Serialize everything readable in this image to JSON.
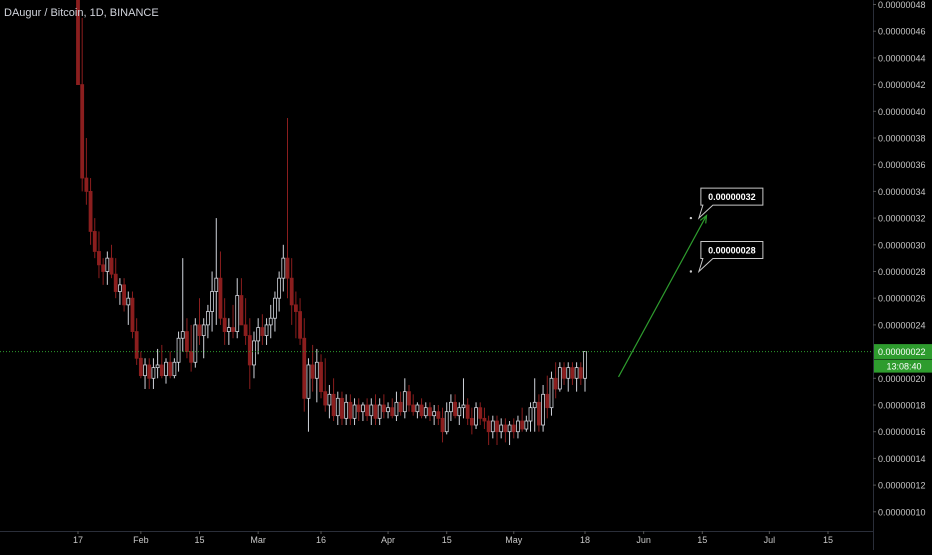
{
  "header": {
    "title": "DAugur / Bitcoin, 1D, BINANCE"
  },
  "chart_data": {
    "type": "candlestick",
    "title": "DAugur / Bitcoin, 1D, BINANCE",
    "ylim": [
      9.1e-08,
      4.9e-08
    ],
    "y_ticks": [
      "0.00000048",
      "0.00000046",
      "0.00000044",
      "0.00000042",
      "0.00000040",
      "0.00000038",
      "0.00000036",
      "0.00000034",
      "0.00000032",
      "0.00000030",
      "0.00000028",
      "0.00000026",
      "0.00000024",
      "0.00000022",
      "0.00000020",
      "0.00000018",
      "0.00000016",
      "0.00000014",
      "0.00000012",
      "0.00000010"
    ],
    "x_ticks": [
      {
        "label": "17",
        "day": 0
      },
      {
        "label": "Feb",
        "day": 15
      },
      {
        "label": "15",
        "day": 29
      },
      {
        "label": "Mar",
        "day": 43
      },
      {
        "label": "16",
        "day": 58
      },
      {
        "label": "Apr",
        "day": 74
      },
      {
        "label": "15",
        "day": 88
      },
      {
        "label": "May",
        "day": 104
      },
      {
        "label": "18",
        "day": 121
      },
      {
        "label": "Jun",
        "day": 135
      },
      {
        "label": "15",
        "day": 149
      },
      {
        "label": "Jul",
        "day": 165
      },
      {
        "label": "15",
        "day": 179
      }
    ],
    "last_price": "0.00000022",
    "countdown": "13:08:40",
    "annotations": [
      {
        "text": "0.00000032",
        "value": 3.2e-07,
        "day": 152
      },
      {
        "text": "0.00000028",
        "value": 2.8e-07,
        "day": 152
      }
    ],
    "projection": {
      "from_day": 129,
      "from_value": 2.01e-07,
      "to_day": 150,
      "to_value": 3.22e-07,
      "color": "#2e9c2e"
    },
    "candles": [
      {
        "d": 0,
        "o": 4.9e-07,
        "h": 4.9e-07,
        "l": 4.2e-07,
        "c": 4.2e-07
      },
      {
        "d": 1,
        "o": 4.2e-07,
        "h": 4.7e-07,
        "l": 3.4e-07,
        "c": 3.5e-07
      },
      {
        "d": 2,
        "o": 3.5e-07,
        "h": 3.8e-07,
        "l": 3.3e-07,
        "c": 3.4e-07
      },
      {
        "d": 3,
        "o": 3.4e-07,
        "h": 3.5e-07,
        "l": 3e-07,
        "c": 3.1e-07
      },
      {
        "d": 4,
        "o": 3.1e-07,
        "h": 3.2e-07,
        "l": 2.9e-07,
        "c": 2.95e-07
      },
      {
        "d": 5,
        "o": 2.95e-07,
        "h": 3.1e-07,
        "l": 2.75e-07,
        "c": 2.85e-07
      },
      {
        "d": 6,
        "o": 2.85e-07,
        "h": 2.9e-07,
        "l": 2.7e-07,
        "c": 2.8e-07
      },
      {
        "d": 7,
        "o": 2.8e-07,
        "h": 2.95e-07,
        "l": 2.7e-07,
        "c": 2.9e-07
      },
      {
        "d": 8,
        "o": 2.9e-07,
        "h": 3e-07,
        "l": 2.75e-07,
        "c": 2.78e-07
      },
      {
        "d": 9,
        "o": 2.78e-07,
        "h": 2.9e-07,
        "l": 2.6e-07,
        "c": 2.65e-07
      },
      {
        "d": 10,
        "o": 2.65e-07,
        "h": 2.75e-07,
        "l": 2.55e-07,
        "c": 2.7e-07
      },
      {
        "d": 11,
        "o": 2.7e-07,
        "h": 2.75e-07,
        "l": 2.5e-07,
        "c": 2.55e-07
      },
      {
        "d": 12,
        "o": 2.55e-07,
        "h": 2.65e-07,
        "l": 2.4e-07,
        "c": 2.6e-07
      },
      {
        "d": 13,
        "o": 2.6e-07,
        "h": 2.65e-07,
        "l": 2.3e-07,
        "c": 2.35e-07
      },
      {
        "d": 14,
        "o": 2.35e-07,
        "h": 2.45e-07,
        "l": 2.1e-07,
        "c": 2.15e-07
      },
      {
        "d": 15,
        "o": 2.15e-07,
        "h": 2.2e-07,
        "l": 2e-07,
        "c": 2.02e-07
      },
      {
        "d": 16,
        "o": 2.02e-07,
        "h": 2.15e-07,
        "l": 1.92e-07,
        "c": 2.1e-07
      },
      {
        "d": 17,
        "o": 2.1e-07,
        "h": 2.15e-07,
        "l": 1.92e-07,
        "c": 2e-07
      },
      {
        "d": 18,
        "o": 2e-07,
        "h": 2.15e-07,
        "l": 1.92e-07,
        "c": 2.08e-07
      },
      {
        "d": 19,
        "o": 2.08e-07,
        "h": 2.22e-07,
        "l": 2e-07,
        "c": 2.1e-07
      },
      {
        "d": 20,
        "o": 2.1e-07,
        "h": 2.25e-07,
        "l": 2e-07,
        "c": 2.02e-07
      },
      {
        "d": 21,
        "o": 2.02e-07,
        "h": 2.15e-07,
        "l": 1.96e-07,
        "c": 2.12e-07
      },
      {
        "d": 22,
        "o": 2.12e-07,
        "h": 2.2e-07,
        "l": 2e-07,
        "c": 2.02e-07
      },
      {
        "d": 23,
        "o": 2.02e-07,
        "h": 2.15e-07,
        "l": 2e-07,
        "c": 2.12e-07
      },
      {
        "d": 24,
        "o": 2.12e-07,
        "h": 2.35e-07,
        "l": 2.05e-07,
        "c": 2.3e-07
      },
      {
        "d": 25,
        "o": 2.3e-07,
        "h": 2.9e-07,
        "l": 2.2e-07,
        "c": 2.35e-07
      },
      {
        "d": 26,
        "o": 2.35e-07,
        "h": 2.45e-07,
        "l": 2.15e-07,
        "c": 2.2e-07
      },
      {
        "d": 27,
        "o": 2.2e-07,
        "h": 2.4e-07,
        "l": 2.05e-07,
        "c": 2.12e-07
      },
      {
        "d": 28,
        "o": 2.12e-07,
        "h": 2.45e-07,
        "l": 2.08e-07,
        "c": 2.4e-07
      },
      {
        "d": 29,
        "o": 2.4e-07,
        "h": 2.6e-07,
        "l": 2.25e-07,
        "c": 2.32e-07
      },
      {
        "d": 30,
        "o": 2.32e-07,
        "h": 2.45e-07,
        "l": 2.15e-07,
        "c": 2.4e-07
      },
      {
        "d": 31,
        "o": 2.4e-07,
        "h": 2.55e-07,
        "l": 2.3e-07,
        "c": 2.5e-07
      },
      {
        "d": 32,
        "o": 2.5e-07,
        "h": 2.8e-07,
        "l": 2.35e-07,
        "c": 2.65e-07
      },
      {
        "d": 33,
        "o": 2.65e-07,
        "h": 3.2e-07,
        "l": 2.4e-07,
        "c": 2.75e-07
      },
      {
        "d": 34,
        "o": 2.75e-07,
        "h": 2.95e-07,
        "l": 2.4e-07,
        "c": 2.45e-07
      },
      {
        "d": 35,
        "o": 2.45e-07,
        "h": 2.6e-07,
        "l": 2.25e-07,
        "c": 2.35e-07
      },
      {
        "d": 36,
        "o": 2.35e-07,
        "h": 2.45e-07,
        "l": 2.25e-07,
        "c": 2.38e-07
      },
      {
        "d": 37,
        "o": 2.38e-07,
        "h": 2.55e-07,
        "l": 2.3e-07,
        "c": 2.35e-07
      },
      {
        "d": 38,
        "o": 2.35e-07,
        "h": 2.75e-07,
        "l": 2.3e-07,
        "c": 2.62e-07
      },
      {
        "d": 39,
        "o": 2.62e-07,
        "h": 2.75e-07,
        "l": 2.4e-07,
        "c": 2.4e-07
      },
      {
        "d": 40,
        "o": 2.4e-07,
        "h": 2.6e-07,
        "l": 2.25e-07,
        "c": 2.32e-07
      },
      {
        "d": 41,
        "o": 2.32e-07,
        "h": 2.45e-07,
        "l": 1.92e-07,
        "c": 2.1e-07
      },
      {
        "d": 42,
        "o": 2.1e-07,
        "h": 2.35e-07,
        "l": 2e-07,
        "c": 2.28e-07
      },
      {
        "d": 43,
        "o": 2.28e-07,
        "h": 2.45e-07,
        "l": 2.18e-07,
        "c": 2.38e-07
      },
      {
        "d": 44,
        "o": 2.38e-07,
        "h": 2.48e-07,
        "l": 2.25e-07,
        "c": 2.32e-07
      },
      {
        "d": 45,
        "o": 2.32e-07,
        "h": 2.45e-07,
        "l": 2.25e-07,
        "c": 2.4e-07
      },
      {
        "d": 46,
        "o": 2.4e-07,
        "h": 2.55e-07,
        "l": 2.3e-07,
        "c": 2.45e-07
      },
      {
        "d": 47,
        "o": 2.45e-07,
        "h": 2.65e-07,
        "l": 2.35e-07,
        "c": 2.6e-07
      },
      {
        "d": 48,
        "o": 2.6e-07,
        "h": 2.8e-07,
        "l": 2.5e-07,
        "c": 2.75e-07
      },
      {
        "d": 49,
        "o": 2.75e-07,
        "h": 3e-07,
        "l": 2.65e-07,
        "c": 2.9e-07
      },
      {
        "d": 50,
        "o": 2.9e-07,
        "h": 3.95e-07,
        "l": 2.6e-07,
        "c": 2.75e-07
      },
      {
        "d": 51,
        "o": 2.75e-07,
        "h": 2.9e-07,
        "l": 2.4e-07,
        "c": 2.55e-07
      },
      {
        "d": 52,
        "o": 2.55e-07,
        "h": 2.65e-07,
        "l": 2.3e-07,
        "c": 2.5e-07
      },
      {
        "d": 53,
        "o": 2.5e-07,
        "h": 2.6e-07,
        "l": 2.25e-07,
        "c": 2.3e-07
      },
      {
        "d": 54,
        "o": 2.3e-07,
        "h": 2.45e-07,
        "l": 1.75e-07,
        "c": 1.85e-07
      },
      {
        "d": 55,
        "o": 1.85e-07,
        "h": 2.15e-07,
        "l": 1.6e-07,
        "c": 2.1e-07
      },
      {
        "d": 56,
        "o": 2.1e-07,
        "h": 2.25e-07,
        "l": 1.9e-07,
        "c": 2e-07
      },
      {
        "d": 57,
        "o": 2e-07,
        "h": 2.22e-07,
        "l": 1.82e-07,
        "c": 2.12e-07
      },
      {
        "d": 58,
        "o": 2.12e-07,
        "h": 2.18e-07,
        "l": 1.85e-07,
        "c": 1.9e-07
      },
      {
        "d": 59,
        "o": 1.9e-07,
        "h": 2.15e-07,
        "l": 1.75e-07,
        "c": 1.8e-07
      },
      {
        "d": 60,
        "o": 1.8e-07,
        "h": 1.95e-07,
        "l": 1.7e-07,
        "c": 1.88e-07
      },
      {
        "d": 61,
        "o": 1.88e-07,
        "h": 2e-07,
        "l": 1.68e-07,
        "c": 1.72e-07
      },
      {
        "d": 62,
        "o": 1.72e-07,
        "h": 1.9e-07,
        "l": 1.65e-07,
        "c": 1.85e-07
      },
      {
        "d": 63,
        "o": 1.85e-07,
        "h": 1.9e-07,
        "l": 1.65e-07,
        "c": 1.7e-07
      },
      {
        "d": 64,
        "o": 1.7e-07,
        "h": 1.88e-07,
        "l": 1.65e-07,
        "c": 1.82e-07
      },
      {
        "d": 65,
        "o": 1.82e-07,
        "h": 1.88e-07,
        "l": 1.65e-07,
        "c": 1.7e-07
      },
      {
        "d": 66,
        "o": 1.7e-07,
        "h": 1.85e-07,
        "l": 1.65e-07,
        "c": 1.8e-07
      },
      {
        "d": 67,
        "o": 1.8e-07,
        "h": 1.85e-07,
        "l": 1.68e-07,
        "c": 1.75e-07
      },
      {
        "d": 68,
        "o": 1.75e-07,
        "h": 1.82e-07,
        "l": 1.68e-07,
        "c": 1.8e-07
      },
      {
        "d": 69,
        "o": 1.8e-07,
        "h": 1.85e-07,
        "l": 1.68e-07,
        "c": 1.72e-07
      },
      {
        "d": 70,
        "o": 1.72e-07,
        "h": 1.85e-07,
        "l": 1.65e-07,
        "c": 1.8e-07
      },
      {
        "d": 71,
        "o": 1.8e-07,
        "h": 1.88e-07,
        "l": 1.65e-07,
        "c": 1.7e-07
      },
      {
        "d": 72,
        "o": 1.7e-07,
        "h": 1.85e-07,
        "l": 1.65e-07,
        "c": 1.8e-07
      },
      {
        "d": 73,
        "o": 1.8e-07,
        "h": 1.88e-07,
        "l": 1.7e-07,
        "c": 1.75e-07
      },
      {
        "d": 74,
        "o": 1.75e-07,
        "h": 1.82e-07,
        "l": 1.7e-07,
        "c": 1.78e-07
      },
      {
        "d": 75,
        "o": 1.78e-07,
        "h": 1.85e-07,
        "l": 1.7e-07,
        "c": 1.72e-07
      },
      {
        "d": 76,
        "o": 1.72e-07,
        "h": 1.9e-07,
        "l": 1.68e-07,
        "c": 1.82e-07
      },
      {
        "d": 77,
        "o": 1.82e-07,
        "h": 1.9e-07,
        "l": 1.72e-07,
        "c": 1.75e-07
      },
      {
        "d": 78,
        "o": 1.75e-07,
        "h": 2e-07,
        "l": 1.7e-07,
        "c": 1.9e-07
      },
      {
        "d": 79,
        "o": 1.9e-07,
        "h": 1.95e-07,
        "l": 1.75e-07,
        "c": 1.8e-07
      },
      {
        "d": 80,
        "o": 1.8e-07,
        "h": 1.88e-07,
        "l": 1.72e-07,
        "c": 1.75e-07
      },
      {
        "d": 81,
        "o": 1.75e-07,
        "h": 1.82e-07,
        "l": 1.7e-07,
        "c": 1.8e-07
      },
      {
        "d": 82,
        "o": 1.8e-07,
        "h": 1.85e-07,
        "l": 1.7e-07,
        "c": 1.72e-07
      },
      {
        "d": 83,
        "o": 1.72e-07,
        "h": 1.82e-07,
        "l": 1.7e-07,
        "c": 1.78e-07
      },
      {
        "d": 84,
        "o": 1.78e-07,
        "h": 1.82e-07,
        "l": 1.68e-07,
        "c": 1.72e-07
      },
      {
        "d": 85,
        "o": 1.72e-07,
        "h": 1.8e-07,
        "l": 1.65e-07,
        "c": 1.75e-07
      },
      {
        "d": 86,
        "o": 1.75e-07,
        "h": 1.8e-07,
        "l": 1.65e-07,
        "c": 1.7e-07
      },
      {
        "d": 87,
        "o": 1.7e-07,
        "h": 1.78e-07,
        "l": 1.52e-07,
        "c": 1.6e-07
      },
      {
        "d": 88,
        "o": 1.6e-07,
        "h": 1.82e-07,
        "l": 1.58e-07,
        "c": 1.75e-07
      },
      {
        "d": 89,
        "o": 1.75e-07,
        "h": 1.88e-07,
        "l": 1.68e-07,
        "c": 1.82e-07
      },
      {
        "d": 90,
        "o": 1.82e-07,
        "h": 1.88e-07,
        "l": 1.7e-07,
        "c": 1.72e-07
      },
      {
        "d": 91,
        "o": 1.72e-07,
        "h": 1.82e-07,
        "l": 1.65e-07,
        "c": 1.78e-07
      },
      {
        "d": 92,
        "o": 1.78e-07,
        "h": 2e-07,
        "l": 1.7e-07,
        "c": 1.8e-07
      },
      {
        "d": 93,
        "o": 1.8e-07,
        "h": 1.85e-07,
        "l": 1.65e-07,
        "c": 1.7e-07
      },
      {
        "d": 94,
        "o": 1.7e-07,
        "h": 1.78e-07,
        "l": 1.58e-07,
        "c": 1.65e-07
      },
      {
        "d": 95,
        "o": 1.65e-07,
        "h": 1.82e-07,
        "l": 1.62e-07,
        "c": 1.78e-07
      },
      {
        "d": 96,
        "o": 1.78e-07,
        "h": 1.82e-07,
        "l": 1.65e-07,
        "c": 1.7e-07
      },
      {
        "d": 97,
        "o": 1.7e-07,
        "h": 1.78e-07,
        "l": 1.62e-07,
        "c": 1.68e-07
      },
      {
        "d": 98,
        "o": 1.68e-07,
        "h": 1.72e-07,
        "l": 1.5e-07,
        "c": 1.6e-07
      },
      {
        "d": 99,
        "o": 1.6e-07,
        "h": 1.72e-07,
        "l": 1.55e-07,
        "c": 1.68e-07
      },
      {
        "d": 100,
        "o": 1.68e-07,
        "h": 1.72e-07,
        "l": 1.5e-07,
        "c": 1.6e-07
      },
      {
        "d": 101,
        "o": 1.6e-07,
        "h": 1.7e-07,
        "l": 1.55e-07,
        "c": 1.65e-07
      },
      {
        "d": 102,
        "o": 1.65e-07,
        "h": 1.7e-07,
        "l": 1.52e-07,
        "c": 1.6e-07
      },
      {
        "d": 103,
        "o": 1.6e-07,
        "h": 1.68e-07,
        "l": 1.5e-07,
        "c": 1.65e-07
      },
      {
        "d": 104,
        "o": 1.65e-07,
        "h": 1.7e-07,
        "l": 1.55e-07,
        "c": 1.6e-07
      },
      {
        "d": 105,
        "o": 1.6e-07,
        "h": 1.72e-07,
        "l": 1.55e-07,
        "c": 1.68e-07
      },
      {
        "d": 106,
        "o": 1.68e-07,
        "h": 1.78e-07,
        "l": 1.6e-07,
        "c": 1.62e-07
      },
      {
        "d": 107,
        "o": 1.62e-07,
        "h": 1.72e-07,
        "l": 1.6e-07,
        "c": 1.68e-07
      },
      {
        "d": 108,
        "o": 1.68e-07,
        "h": 1.82e-07,
        "l": 1.6e-07,
        "c": 1.78e-07
      },
      {
        "d": 109,
        "o": 1.78e-07,
        "h": 2e-07,
        "l": 1.6e-07,
        "c": 1.82e-07
      },
      {
        "d": 110,
        "o": 1.82e-07,
        "h": 1.88e-07,
        "l": 1.6e-07,
        "c": 1.65e-07
      },
      {
        "d": 111,
        "o": 1.65e-07,
        "h": 1.95e-07,
        "l": 1.6e-07,
        "c": 1.88e-07
      },
      {
        "d": 112,
        "o": 1.88e-07,
        "h": 2.02e-07,
        "l": 1.7e-07,
        "c": 1.78e-07
      },
      {
        "d": 113,
        "o": 1.78e-07,
        "h": 2.05e-07,
        "l": 1.72e-07,
        "c": 2e-07
      },
      {
        "d": 114,
        "o": 2e-07,
        "h": 2.12e-07,
        "l": 1.85e-07,
        "c": 1.92e-07
      },
      {
        "d": 115,
        "o": 1.92e-07,
        "h": 2.12e-07,
        "l": 1.9e-07,
        "c": 2.08e-07
      },
      {
        "d": 116,
        "o": 2.08e-07,
        "h": 2.12e-07,
        "l": 1.95e-07,
        "c": 2e-07
      },
      {
        "d": 117,
        "o": 2e-07,
        "h": 2.12e-07,
        "l": 1.9e-07,
        "c": 2.08e-07
      },
      {
        "d": 118,
        "o": 2.08e-07,
        "h": 2.12e-07,
        "l": 1.95e-07,
        "c": 2e-07
      },
      {
        "d": 119,
        "o": 2e-07,
        "h": 2.12e-07,
        "l": 1.9e-07,
        "c": 2.08e-07
      },
      {
        "d": 120,
        "o": 2.08e-07,
        "h": 2.12e-07,
        "l": 1.95e-07,
        "c": 2e-07
      },
      {
        "d": 121,
        "o": 2e-07,
        "h": 2.2e-07,
        "l": 1.9e-07,
        "c": 2.2e-07
      }
    ]
  },
  "colors": {
    "background": "#000000",
    "up": "#d1d4dc",
    "down": "#8b1e1e",
    "axis_text": "#c8c8c8",
    "last_price_line": "#2e9c2e",
    "last_price_badge": "#2e9c2e",
    "projection": "#2e9c2e"
  }
}
